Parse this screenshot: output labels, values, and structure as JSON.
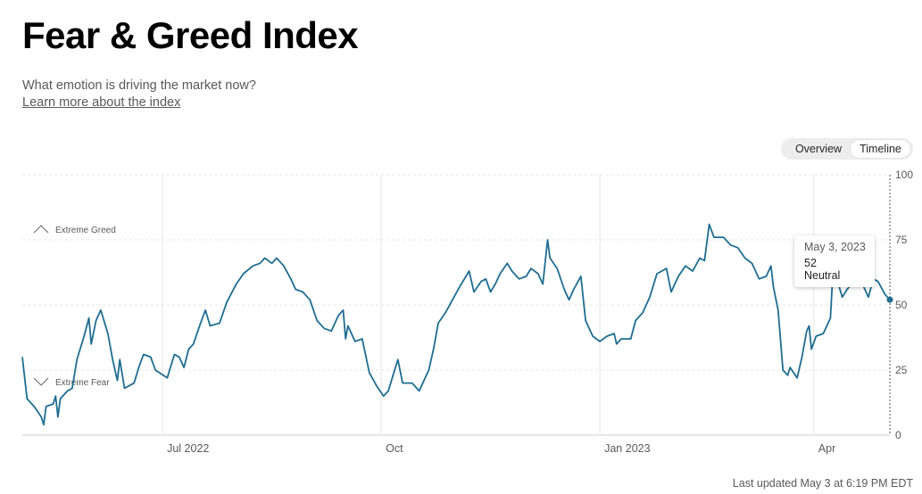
{
  "header": {
    "title": "Fear & Greed Index",
    "subtitle": "What emotion is driving the market now?",
    "learn_more": "Learn more about the index"
  },
  "toggle": {
    "overview": "Overview",
    "timeline": "Timeline"
  },
  "footer": {
    "last_updated": "Last updated May 3 at 6:19 PM EDT"
  },
  "colors": {
    "line": "#1f6d91",
    "grid": "#e6e6e6",
    "axis": "#cccccc",
    "text": "#595959"
  },
  "tooltip": {
    "date": "May 3, 2023",
    "value": "52",
    "rating": "Neutral"
  },
  "chart_data": {
    "type": "line",
    "title": "",
    "xlabel": "",
    "ylabel": "",
    "ylim": [
      0,
      100
    ],
    "y_ticks": [
      0,
      25,
      50,
      75,
      100
    ],
    "y_tick_labels": [
      "0",
      "25",
      "50",
      "75",
      "100"
    ],
    "x_range": [
      "2022-05-03",
      "2023-05-03"
    ],
    "x_ticks": [
      {
        "date": "2022-07-01",
        "label": "Jul 2022"
      },
      {
        "date": "2022-10-01",
        "label": "Oct"
      },
      {
        "date": "2023-01-01",
        "label": "Jan 2023"
      },
      {
        "date": "2023-04-01",
        "label": "Apr"
      }
    ],
    "zones": [
      {
        "label": "Extreme Greed",
        "icon": "chevron-up-icon"
      },
      {
        "label": "Extreme Fear",
        "icon": "chevron-down-icon"
      }
    ],
    "series": [
      {
        "points": [
          [
            "2022-05-03",
            30
          ],
          [
            "2022-05-05",
            14
          ],
          [
            "2022-05-08",
            11
          ],
          [
            "2022-05-11",
            7
          ],
          [
            "2022-05-12",
            4
          ],
          [
            "2022-05-13",
            11
          ],
          [
            "2022-05-16",
            12
          ],
          [
            "2022-05-17",
            15
          ],
          [
            "2022-05-18",
            7
          ],
          [
            "2022-05-19",
            14
          ],
          [
            "2022-05-22",
            17
          ],
          [
            "2022-05-24",
            18
          ],
          [
            "2022-05-26",
            29
          ],
          [
            "2022-05-29",
            38
          ],
          [
            "2022-05-31",
            45
          ],
          [
            "2022-06-01",
            35
          ],
          [
            "2022-06-03",
            44
          ],
          [
            "2022-06-05",
            48
          ],
          [
            "2022-06-08",
            39
          ],
          [
            "2022-06-10",
            29
          ],
          [
            "2022-06-12",
            21
          ],
          [
            "2022-06-13",
            29
          ],
          [
            "2022-06-15",
            18
          ],
          [
            "2022-06-19",
            20
          ],
          [
            "2022-06-21",
            26
          ],
          [
            "2022-06-23",
            31
          ],
          [
            "2022-06-26",
            30
          ],
          [
            "2022-06-28",
            25
          ],
          [
            "2022-07-03",
            22
          ],
          [
            "2022-07-06",
            31
          ],
          [
            "2022-07-08",
            30
          ],
          [
            "2022-07-10",
            26
          ],
          [
            "2022-07-12",
            33
          ],
          [
            "2022-07-14",
            35
          ],
          [
            "2022-07-17",
            43
          ],
          [
            "2022-07-19",
            48
          ],
          [
            "2022-07-21",
            42
          ],
          [
            "2022-07-25",
            43
          ],
          [
            "2022-07-28",
            51
          ],
          [
            "2022-08-01",
            58
          ],
          [
            "2022-08-04",
            62
          ],
          [
            "2022-08-08",
            65
          ],
          [
            "2022-08-11",
            66
          ],
          [
            "2022-08-13",
            68
          ],
          [
            "2022-08-16",
            66
          ],
          [
            "2022-08-18",
            68
          ],
          [
            "2022-08-21",
            65
          ],
          [
            "2022-08-24",
            60
          ],
          [
            "2022-08-26",
            56
          ],
          [
            "2022-08-29",
            55
          ],
          [
            "2022-09-01",
            52
          ],
          [
            "2022-09-04",
            44
          ],
          [
            "2022-09-07",
            41
          ],
          [
            "2022-09-10",
            40
          ],
          [
            "2022-09-13",
            46
          ],
          [
            "2022-09-15",
            48
          ],
          [
            "2022-09-16",
            37
          ],
          [
            "2022-09-17",
            42
          ],
          [
            "2022-09-20",
            36
          ],
          [
            "2022-09-23",
            37
          ],
          [
            "2022-09-26",
            24
          ],
          [
            "2022-09-29",
            19
          ],
          [
            "2022-10-02",
            15
          ],
          [
            "2022-10-04",
            17
          ],
          [
            "2022-10-06",
            23
          ],
          [
            "2022-10-08",
            29
          ],
          [
            "2022-10-10",
            20
          ],
          [
            "2022-10-14",
            20
          ],
          [
            "2022-10-17",
            17
          ],
          [
            "2022-10-19",
            21
          ],
          [
            "2022-10-21",
            25
          ],
          [
            "2022-10-23",
            33
          ],
          [
            "2022-10-25",
            43
          ],
          [
            "2022-10-28",
            47
          ],
          [
            "2022-10-31",
            52
          ],
          [
            "2022-11-03",
            57
          ],
          [
            "2022-11-07",
            63
          ],
          [
            "2022-11-09",
            55
          ],
          [
            "2022-11-12",
            59
          ],
          [
            "2022-11-14",
            60
          ],
          [
            "2022-11-16",
            55
          ],
          [
            "2022-11-18",
            58
          ],
          [
            "2022-11-20",
            62
          ],
          [
            "2022-11-23",
            66
          ],
          [
            "2022-11-25",
            63
          ],
          [
            "2022-11-28",
            60
          ],
          [
            "2022-12-01",
            61
          ],
          [
            "2022-12-03",
            64
          ],
          [
            "2022-12-06",
            62
          ],
          [
            "2022-12-08",
            58
          ],
          [
            "2022-12-10",
            75
          ],
          [
            "2022-12-11",
            68
          ],
          [
            "2022-12-14",
            64
          ],
          [
            "2022-12-17",
            56
          ],
          [
            "2022-12-19",
            52
          ],
          [
            "2022-12-21",
            56
          ],
          [
            "2022-12-24",
            61
          ],
          [
            "2022-12-26",
            44
          ],
          [
            "2022-12-29",
            38
          ],
          [
            "2023-01-01",
            36
          ],
          [
            "2023-01-04",
            38
          ],
          [
            "2023-01-07",
            39
          ],
          [
            "2023-01-08",
            35
          ],
          [
            "2023-01-10",
            37
          ],
          [
            "2023-01-14",
            37
          ],
          [
            "2023-01-16",
            44
          ],
          [
            "2023-01-19",
            47
          ],
          [
            "2023-01-22",
            53
          ],
          [
            "2023-01-25",
            62
          ],
          [
            "2023-01-29",
            64
          ],
          [
            "2023-01-31",
            55
          ],
          [
            "2023-02-03",
            61
          ],
          [
            "2023-02-06",
            65
          ],
          [
            "2023-02-09",
            63
          ],
          [
            "2023-02-12",
            68
          ],
          [
            "2023-02-14",
            67
          ],
          [
            "2023-02-16",
            81
          ],
          [
            "2023-02-18",
            76
          ],
          [
            "2023-02-22",
            76
          ],
          [
            "2023-02-25",
            73
          ],
          [
            "2023-02-28",
            72
          ],
          [
            "2023-03-03",
            68
          ],
          [
            "2023-03-06",
            66
          ],
          [
            "2023-03-09",
            60
          ],
          [
            "2023-03-12",
            61
          ],
          [
            "2023-03-14",
            65
          ],
          [
            "2023-03-15",
            57
          ],
          [
            "2023-03-17",
            48
          ],
          [
            "2023-03-19",
            25
          ],
          [
            "2023-03-21",
            23
          ],
          [
            "2023-03-22",
            26
          ],
          [
            "2023-03-25",
            22
          ],
          [
            "2023-03-27",
            30
          ],
          [
            "2023-03-29",
            40
          ],
          [
            "2023-03-30",
            42
          ],
          [
            "2023-03-31",
            33
          ],
          [
            "2023-04-02",
            38
          ],
          [
            "2023-04-05",
            39
          ],
          [
            "2023-04-08",
            45
          ],
          [
            "2023-04-09",
            62
          ],
          [
            "2023-04-11",
            59
          ],
          [
            "2023-04-13",
            53
          ],
          [
            "2023-04-15",
            56
          ],
          [
            "2023-04-17",
            58
          ],
          [
            "2023-04-20",
            60
          ],
          [
            "2023-04-22",
            57
          ],
          [
            "2023-04-24",
            53
          ],
          [
            "2023-04-26",
            60
          ],
          [
            "2023-04-28",
            59
          ],
          [
            "2023-05-01",
            54
          ],
          [
            "2023-05-03",
            52
          ]
        ]
      }
    ]
  }
}
